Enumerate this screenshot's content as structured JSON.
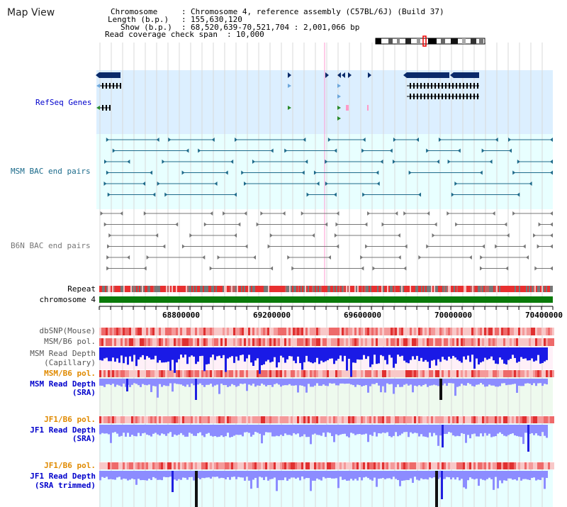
{
  "page": {
    "title": "Map View"
  },
  "header": {
    "chrom_label": "Chromosome",
    "chrom_value": "Chromosome 4, reference assembly (C57BL/6J) (Build 37)",
    "length_label": "Length (b.p.)",
    "length_value": "155,630,120",
    "show_label": "Show (b.p.)",
    "show_value": "68,520,639-70,521,704 : 2,001,066 bp",
    "span_label": "Read coverage check span",
    "span_value": "10,000"
  },
  "tracks": {
    "refseq": "RefSeq Genes",
    "msm_bac": "MSM BAC end pairs",
    "b6n_bac": "B6N BAC end pairs",
    "repeat": "Repeat",
    "chromosome": "chromosome 4",
    "dbsnp": "dbSNP(Mouse)",
    "msm_b6_pol_1": "MSM/B6 pol.",
    "msm_depth_cap_1": "MSM Read Depth",
    "msm_depth_cap_2": "(Capillary)",
    "msm_b6_pol_2": "MSM/B6 pol.",
    "msm_depth_sra_1": "MSM Read Depth",
    "msm_depth_sra_2": "(SRA)",
    "jf1_b6_pol_1": "JF1/B6 pol.",
    "jf1_depth_sra_1": "JF1 Read Depth",
    "jf1_depth_sra_2": "(SRA)",
    "jf1_b6_pol_2": "JF1/B6 pol.",
    "jf1_depth_trim_1": "JF1 Read Depth",
    "jf1_depth_trim_2": "(SRA trimmed)"
  },
  "axis": {
    "ticks": [
      "68800000",
      "69200000",
      "69600000",
      "70000000",
      "70400000"
    ]
  },
  "colors": {
    "refseq_bg": "#dcefff",
    "bac_bg": "#e8ffff",
    "gene_dark": "#0a2a6a",
    "gene_light": "#6fa8dc",
    "gene_green": "#2a8a2a",
    "msm_bac": "#1e6a8a",
    "b6n_bac": "#777777",
    "chrom_green": "#0a7a0a",
    "pol_red": "#f04848",
    "depth_blue": "#2a2ae0",
    "depth_sra": "#8c8cff",
    "label_blue": "#0000cc",
    "label_orange": "#e08a00",
    "label_teal": "#1a6a8a"
  }
}
